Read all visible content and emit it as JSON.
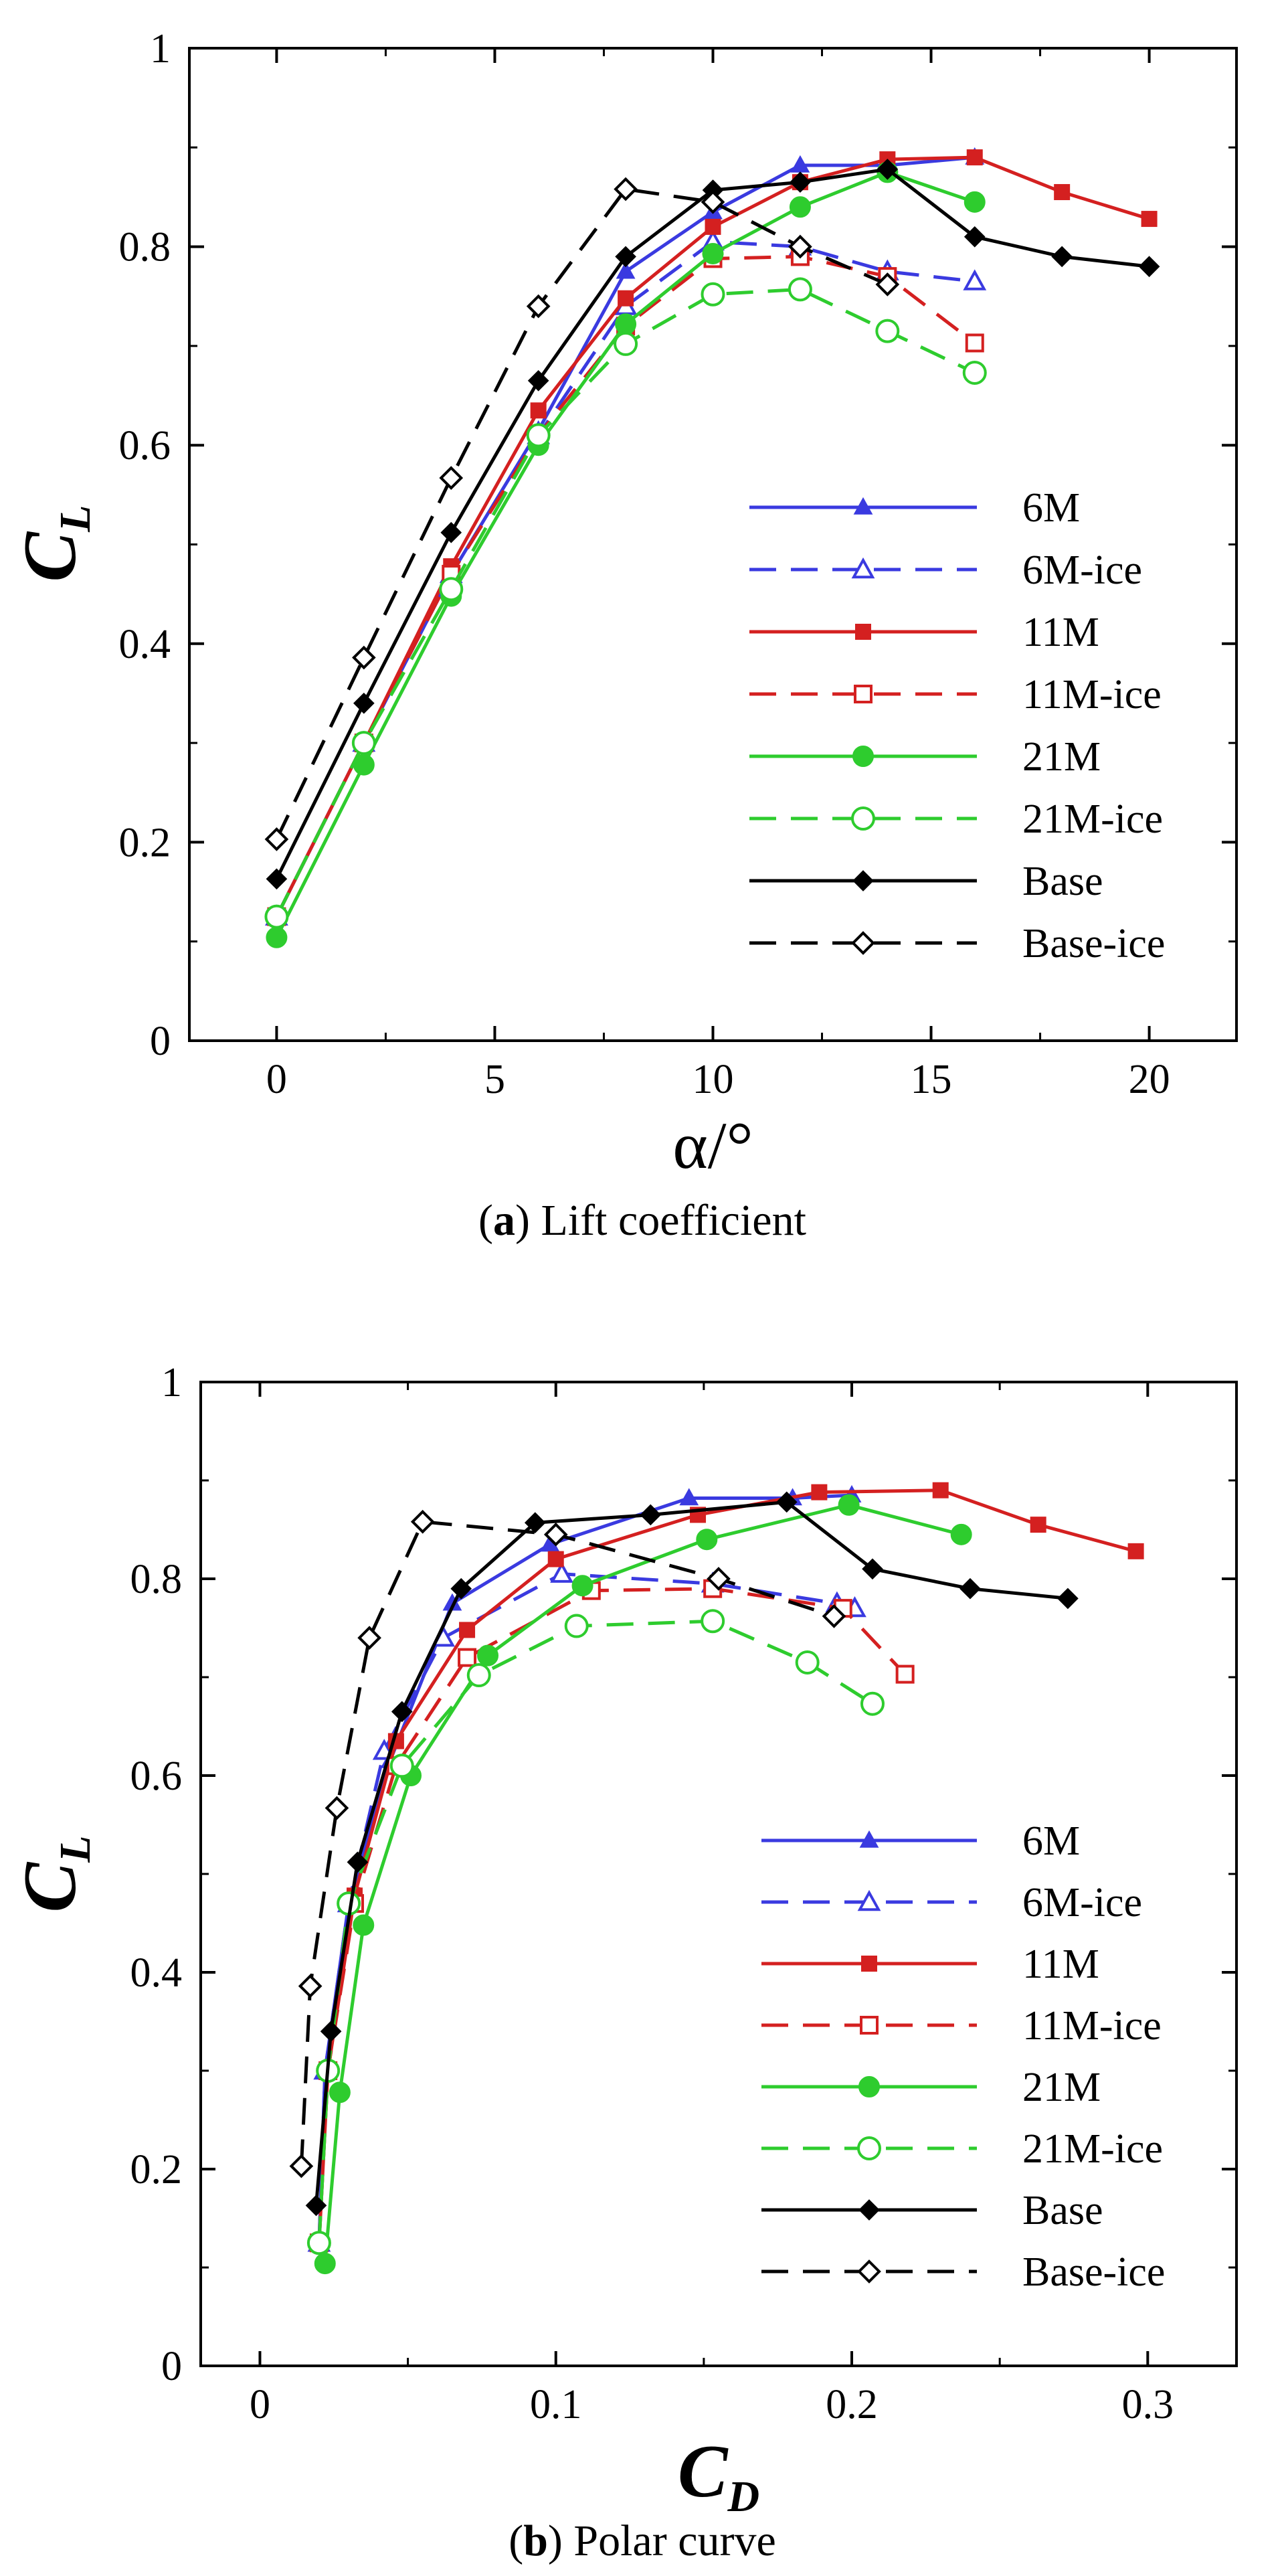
{
  "captions": {
    "a_letter": "a",
    "a_text": "Lift coefficient",
    "b_letter": "b",
    "b_text": "Polar curve"
  },
  "series_styles": [
    {
      "key": "6M",
      "color": "#3a3ae0",
      "dash": false,
      "marker": "triangle",
      "filled": true
    },
    {
      "key": "6M-ice",
      "color": "#3a3ae0",
      "dash": true,
      "marker": "triangle",
      "filled": false
    },
    {
      "key": "11M",
      "color": "#d42020",
      "dash": false,
      "marker": "square",
      "filled": true
    },
    {
      "key": "11M-ice",
      "color": "#d42020",
      "dash": true,
      "marker": "square",
      "filled": false
    },
    {
      "key": "21M",
      "color": "#2ecc2e",
      "dash": false,
      "marker": "circle",
      "filled": true
    },
    {
      "key": "21M-ice",
      "color": "#2ecc2e",
      "dash": true,
      "marker": "circle",
      "filled": false
    },
    {
      "key": "Base",
      "color": "#000000",
      "dash": false,
      "marker": "diamond",
      "filled": true
    },
    {
      "key": "Base-ice",
      "color": "#000000",
      "dash": true,
      "marker": "diamond",
      "filled": false
    }
  ],
  "chart_data": [
    {
      "type": "line",
      "xlabel": "α/°",
      "ylabel_main": "C",
      "ylabel_sub": "L",
      "xlim": [
        -2,
        22
      ],
      "ylim": [
        0,
        1
      ],
      "xticks": [
        "0",
        "5",
        "10",
        "15",
        "20"
      ],
      "xtick_values": [
        0,
        5,
        10,
        15,
        20
      ],
      "yticks": [
        "0",
        "0.2",
        "0.4",
        "0.6",
        "0.8",
        "1"
      ],
      "ytick_values": [
        0,
        0.2,
        0.4,
        0.6,
        0.8,
        1
      ],
      "legend_position": "right",
      "series": [
        {
          "name": "6M",
          "x": [
            0,
            2,
            4,
            6,
            8,
            10,
            12,
            14,
            16
          ],
          "y": [
            0.125,
            0.3,
            0.47,
            0.615,
            0.775,
            0.835,
            0.882,
            0.882,
            0.89
          ]
        },
        {
          "name": "6M-ice",
          "x": [
            0,
            2,
            4,
            6,
            8,
            10,
            12,
            14,
            16
          ],
          "y": [
            0.125,
            0.3,
            0.47,
            0.61,
            0.74,
            0.805,
            0.8,
            0.775,
            0.765
          ]
        },
        {
          "name": "11M",
          "x": [
            0,
            2,
            4,
            6,
            8,
            10,
            12,
            14,
            16,
            18,
            20
          ],
          "y": [
            0.125,
            0.3,
            0.478,
            0.635,
            0.748,
            0.82,
            0.865,
            0.888,
            0.89,
            0.855,
            0.828
          ]
        },
        {
          "name": "11M-ice",
          "x": [
            0,
            2,
            4,
            6,
            8,
            10,
            12,
            14,
            16
          ],
          "y": [
            0.125,
            0.3,
            0.47,
            0.61,
            0.72,
            0.788,
            0.79,
            0.77,
            0.703
          ]
        },
        {
          "name": "21M",
          "x": [
            0,
            2,
            4,
            6,
            8,
            10,
            12,
            14,
            16
          ],
          "y": [
            0.104,
            0.278,
            0.448,
            0.6,
            0.722,
            0.793,
            0.84,
            0.875,
            0.845
          ]
        },
        {
          "name": "21M-ice",
          "x": [
            0,
            2,
            4,
            6,
            8,
            10,
            12,
            14,
            16
          ],
          "y": [
            0.125,
            0.3,
            0.455,
            0.61,
            0.702,
            0.752,
            0.757,
            0.715,
            0.673
          ]
        },
        {
          "name": "Base",
          "x": [
            0,
            2,
            4,
            6,
            8,
            10,
            12,
            14,
            16,
            18,
            20
          ],
          "y": [
            0.163,
            0.34,
            0.512,
            0.665,
            0.79,
            0.857,
            0.865,
            0.878,
            0.81,
            0.79,
            0.78
          ]
        },
        {
          "name": "Base-ice",
          "x": [
            0,
            2,
            4,
            6,
            8,
            10,
            12,
            14
          ],
          "y": [
            0.203,
            0.386,
            0.567,
            0.74,
            0.858,
            0.845,
            0.8,
            0.762
          ]
        }
      ]
    },
    {
      "type": "line",
      "xlabel_main": "C",
      "xlabel_sub": "D",
      "ylabel_main": "C",
      "ylabel_sub": "L",
      "xlim": [
        -0.02,
        0.33
      ],
      "ylim": [
        0,
        1
      ],
      "xticks": [
        "0",
        "0.1",
        "0.2",
        "0.3"
      ],
      "xtick_values": [
        0,
        0.1,
        0.2,
        0.3
      ],
      "yticks": [
        "0",
        "0.2",
        "0.4",
        "0.6",
        "0.8",
        "1"
      ],
      "ytick_values": [
        0,
        0.2,
        0.4,
        0.6,
        0.8,
        1
      ],
      "legend_position": "right",
      "series": [
        {
          "name": "6M",
          "x": [
            0.02,
            0.022,
            0.03,
            0.044,
            0.065,
            0.098,
            0.145,
            0.18,
            0.2
          ],
          "y": [
            0.125,
            0.3,
            0.47,
            0.615,
            0.775,
            0.835,
            0.882,
            0.882,
            0.885
          ]
        },
        {
          "name": "6M-ice",
          "x": [
            0.02,
            0.022,
            0.03,
            0.042,
            0.062,
            0.102,
            0.153,
            0.195,
            0.201
          ],
          "y": [
            0.125,
            0.3,
            0.47,
            0.625,
            0.74,
            0.805,
            0.795,
            0.775,
            0.77
          ]
        },
        {
          "name": "11M",
          "x": [
            0.02,
            0.023,
            0.032,
            0.046,
            0.07,
            0.1,
            0.148,
            0.189,
            0.23,
            0.263,
            0.296
          ],
          "y": [
            0.125,
            0.3,
            0.478,
            0.635,
            0.748,
            0.82,
            0.865,
            0.888,
            0.89,
            0.855,
            0.828
          ]
        },
        {
          "name": "11M-ice",
          "x": [
            0.02,
            0.023,
            0.032,
            0.046,
            0.07,
            0.112,
            0.153,
            0.197,
            0.218
          ],
          "y": [
            0.125,
            0.3,
            0.47,
            0.61,
            0.72,
            0.788,
            0.79,
            0.77,
            0.703
          ]
        },
        {
          "name": "21M",
          "x": [
            0.022,
            0.027,
            0.035,
            0.051,
            0.077,
            0.109,
            0.151,
            0.199,
            0.237
          ],
          "y": [
            0.104,
            0.278,
            0.448,
            0.6,
            0.722,
            0.793,
            0.84,
            0.875,
            0.845
          ]
        },
        {
          "name": "21M-ice",
          "x": [
            0.02,
            0.023,
            0.03,
            0.048,
            0.074,
            0.107,
            0.153,
            0.185,
            0.207
          ],
          "y": [
            0.125,
            0.3,
            0.47,
            0.61,
            0.702,
            0.752,
            0.757,
            0.715,
            0.673
          ]
        },
        {
          "name": "Base",
          "x": [
            0.019,
            0.024,
            0.033,
            0.048,
            0.068,
            0.093,
            0.132,
            0.178,
            0.207,
            0.24,
            0.273
          ],
          "y": [
            0.163,
            0.34,
            0.512,
            0.665,
            0.79,
            0.857,
            0.865,
            0.878,
            0.81,
            0.79,
            0.78
          ]
        },
        {
          "name": "Base-ice",
          "x": [
            0.014,
            0.017,
            0.026,
            0.037,
            0.055,
            0.1,
            0.155,
            0.194
          ],
          "y": [
            0.203,
            0.386,
            0.567,
            0.74,
            0.858,
            0.845,
            0.8,
            0.762
          ]
        }
      ]
    }
  ]
}
